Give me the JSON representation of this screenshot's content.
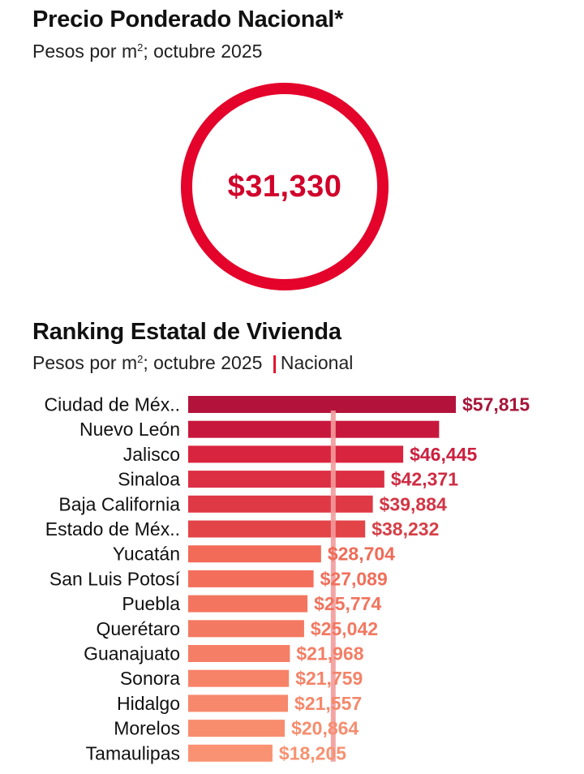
{
  "summary": {
    "title": "Precio Ponderado Nacional*",
    "subtitle_prefix": "Pesos por m",
    "subtitle_sup": "2",
    "subtitle_suffix": "; octubre 2025",
    "value": "$31,330",
    "ring_color": "#e4032a"
  },
  "ranking": {
    "title": "Ranking Estatal de Vivienda",
    "subtitle_prefix": "Pesos por m",
    "subtitle_sup": "2",
    "subtitle_suffix": "; octubre 2025",
    "legend_mark": "|",
    "legend_label": "Nacional"
  },
  "chart_data": {
    "type": "bar",
    "orientation": "horizontal",
    "title": "Ranking Estatal de Vivienda",
    "unit": "Pesos por m²",
    "reference_line": {
      "label": "Nacional",
      "value": 31330
    },
    "categories": [
      "Ciudad de Méx..",
      "Nuevo León",
      "Jalisco",
      "Sinaloa",
      "Baja California",
      "Estado de Méx..",
      "Yucatán",
      "San Luis Potosí",
      "Puebla",
      "Querétaro",
      "Guanajuato",
      "Sonora",
      "Hidalgo",
      "Morelos",
      "Tamaulipas"
    ],
    "values": [
      57815,
      54200,
      46445,
      42371,
      39884,
      38232,
      28704,
      27089,
      25774,
      25042,
      21968,
      21759,
      21557,
      20864,
      18205
    ],
    "labels": [
      "$57,815",
      "",
      "$46,445",
      "$42,371",
      "$39,884",
      "$38,232",
      "$28,704",
      "$27,089",
      "$25,774",
      "$25,042",
      "$21,968",
      "$21,759",
      "$21,557",
      "$20,864",
      "$18,205"
    ],
    "bar_colors": [
      "#b3133b",
      "#c8173d",
      "#d9243f",
      "#dc2f44",
      "#df3946",
      "#e24448",
      "#f26a58",
      "#f36f5c",
      "#f4755f",
      "#f47962",
      "#f57e66",
      "#f68368",
      "#f7886b",
      "#f88d6e",
      "#f99272"
    ],
    "label_colors": [
      "#a7163a",
      "#c8173d",
      "#cc1f3e",
      "#cf2c43",
      "#d33545",
      "#d63f47",
      "#ef6b57",
      "#f06f5b",
      "#f1745e",
      "#f27861",
      "#f37e65",
      "#f48368",
      "#f5886b",
      "#f68d6e",
      "#f79271"
    ],
    "reference_color": "#f29b9b",
    "xlim": [
      0,
      57815
    ]
  }
}
